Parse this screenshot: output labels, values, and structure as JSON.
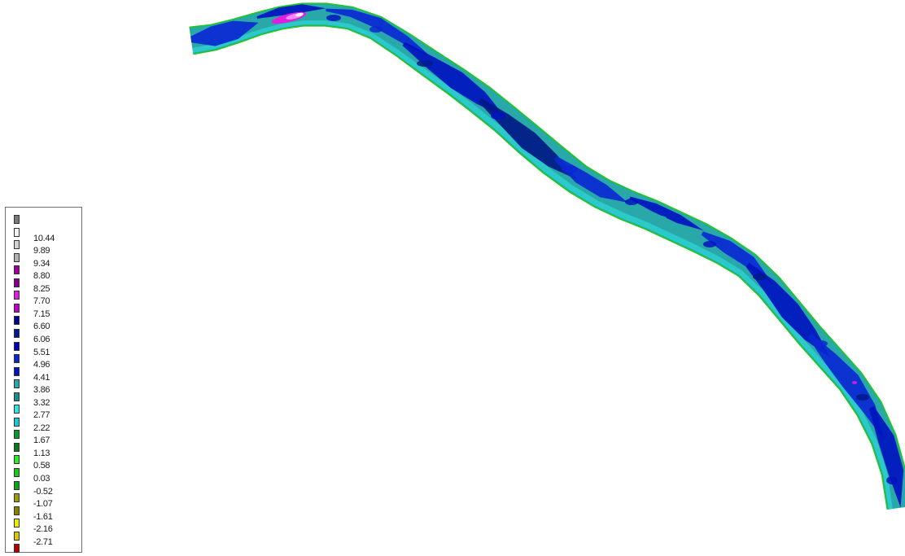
{
  "legend": {
    "items": [
      {
        "label": "",
        "color": "#7a7a7a"
      },
      {
        "label": "10.44",
        "color": "#f2f2f2"
      },
      {
        "label": "9.89",
        "color": "#d2d2d2"
      },
      {
        "label": "9.34",
        "color": "#b3b3b3"
      },
      {
        "label": "8.80",
        "color": "#a0009a"
      },
      {
        "label": "8.25",
        "color": "#860086"
      },
      {
        "label": "7.70",
        "color": "#e01ee0"
      },
      {
        "label": "7.15",
        "color": "#c000c4"
      },
      {
        "label": "6.60",
        "color": "#000090"
      },
      {
        "label": "6.06",
        "color": "#001a88"
      },
      {
        "label": "5.51",
        "color": "#0000b4"
      },
      {
        "label": "4.96",
        "color": "#0a28d2"
      },
      {
        "label": "4.41",
        "color": "#0014c0"
      },
      {
        "label": "3.86",
        "color": "#28a8a8"
      },
      {
        "label": "3.32",
        "color": "#1c8c8c"
      },
      {
        "label": "2.77",
        "color": "#2ee4e4"
      },
      {
        "label": "2.22",
        "color": "#18c8d4"
      },
      {
        "label": "1.67",
        "color": "#0e9a2a"
      },
      {
        "label": "1.13",
        "color": "#0a7a18"
      },
      {
        "label": "0.58",
        "color": "#2aec2a"
      },
      {
        "label": "0.03",
        "color": "#1ec81e"
      },
      {
        "label": "-0.52",
        "color": "#0aa818"
      },
      {
        "label": "-1.07",
        "color": "#9a9a0a"
      },
      {
        "label": "-1.61",
        "color": "#8a8000"
      },
      {
        "label": "-2.16",
        "color": "#ecec0a"
      },
      {
        "label": "-2.71",
        "color": "#d4c800"
      },
      {
        "label": "",
        "color": "#b40000"
      }
    ]
  },
  "river_palette": {
    "base": "#28a8a8",
    "edge_light": "#2ee4e4",
    "bank": "#1ec81e",
    "deep_a": "#0a28d2",
    "deep_b": "#0014c0",
    "deep_c": "#001a88",
    "pink": "#e01ee0",
    "highlight": "#f2f2f2"
  }
}
